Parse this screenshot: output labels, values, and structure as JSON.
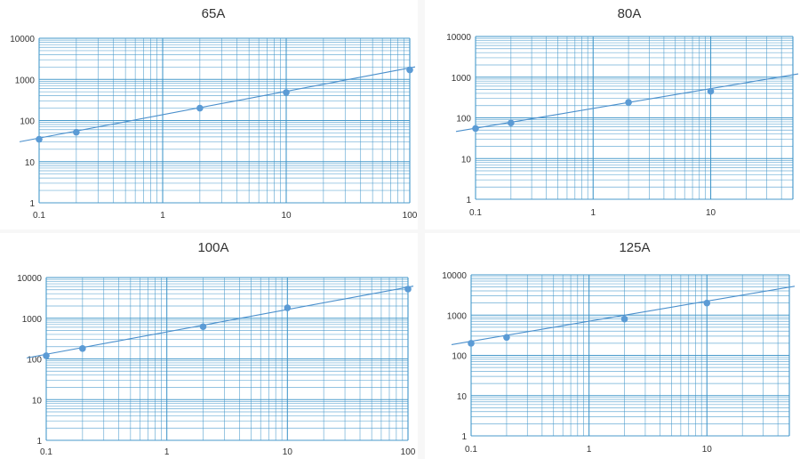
{
  "colors": {
    "grid": "#3f95c9",
    "trend": "#4a8fcc",
    "marker": "#5b9bd5"
  },
  "chart_data": [
    {
      "type": "scatter",
      "title": "65A",
      "x_scale": "log",
      "y_scale": "log",
      "xlim": [
        0.1,
        100
      ],
      "ylim": [
        1,
        10000
      ],
      "x_ticks": [
        {
          "value": 0.1,
          "label": "0.1"
        },
        {
          "value": 1,
          "label": "1"
        },
        {
          "value": 10,
          "label": "10"
        },
        {
          "value": 100,
          "label": "100"
        }
      ],
      "y_ticks": [
        {
          "value": 1,
          "label": "1"
        },
        {
          "value": 10,
          "label": "10"
        },
        {
          "value": 100,
          "label": "100"
        },
        {
          "value": 1000,
          "label": "1000"
        },
        {
          "value": 10000,
          "label": "10000"
        }
      ],
      "points": [
        {
          "x": 0.1,
          "y": 35
        },
        {
          "x": 0.2,
          "y": 52
        },
        {
          "x": 2,
          "y": 200
        },
        {
          "x": 10,
          "y": 480
        },
        {
          "x": 100,
          "y": 1700
        }
      ],
      "trendline": {
        "type": "power",
        "from": [
          0.08,
          33
        ],
        "to": [
          100,
          1900
        ]
      },
      "grid": true,
      "legend": "none"
    },
    {
      "type": "scatter",
      "title": "80A",
      "x_scale": "log",
      "y_scale": "log",
      "xlim": [
        0.1,
        100
      ],
      "ylim": [
        1,
        10000
      ],
      "x_ticks": [
        {
          "value": 0.1,
          "label": "0.1"
        },
        {
          "value": 1,
          "label": "1"
        },
        {
          "value": 10,
          "label": "10"
        }
      ],
      "y_ticks": [
        {
          "value": 1,
          "label": "1"
        },
        {
          "value": 10,
          "label": "10"
        },
        {
          "value": 100,
          "label": "100"
        },
        {
          "value": 1000,
          "label": "1000"
        },
        {
          "value": 10000,
          "label": "10000"
        }
      ],
      "points": [
        {
          "x": 0.1,
          "y": 55
        },
        {
          "x": 0.2,
          "y": 75
        },
        {
          "x": 2,
          "y": 240
        },
        {
          "x": 10,
          "y": 450
        }
      ],
      "trendline": {
        "type": "power",
        "from": [
          0.08,
          50
        ],
        "to": [
          100,
          1600
        ]
      },
      "grid": true,
      "legend": "none"
    },
    {
      "type": "scatter",
      "title": "100A",
      "x_scale": "log",
      "y_scale": "log",
      "xlim": [
        0.1,
        100
      ],
      "ylim": [
        1,
        10000
      ],
      "x_ticks": [
        {
          "value": 0.1,
          "label": "0.1"
        },
        {
          "value": 1,
          "label": "1"
        },
        {
          "value": 10,
          "label": "10"
        },
        {
          "value": 100,
          "label": "100"
        }
      ],
      "y_ticks": [
        {
          "value": 1,
          "label": "1"
        },
        {
          "value": 10,
          "label": "10"
        },
        {
          "value": 100,
          "label": "100"
        },
        {
          "value": 1000,
          "label": "1000"
        },
        {
          "value": 10000,
          "label": "10000"
        }
      ],
      "points": [
        {
          "x": 0.1,
          "y": 120
        },
        {
          "x": 0.2,
          "y": 180
        },
        {
          "x": 2,
          "y": 620
        },
        {
          "x": 10,
          "y": 1800
        },
        {
          "x": 100,
          "y": 5200
        }
      ],
      "trendline": {
        "type": "power",
        "from": [
          0.08,
          115
        ],
        "to": [
          100,
          5800
        ]
      },
      "grid": true,
      "legend": "none"
    },
    {
      "type": "scatter",
      "title": "125A",
      "x_scale": "log",
      "y_scale": "log",
      "xlim": [
        0.1,
        100
      ],
      "ylim": [
        1,
        10000
      ],
      "x_ticks": [
        {
          "value": 0.1,
          "label": "0.1"
        },
        {
          "value": 1,
          "label": "1"
        },
        {
          "value": 10,
          "label": "10"
        }
      ],
      "y_ticks": [
        {
          "value": 1,
          "label": "1"
        },
        {
          "value": 10,
          "label": "10"
        },
        {
          "value": 100,
          "label": "100"
        },
        {
          "value": 1000,
          "label": "1000"
        },
        {
          "value": 10000,
          "label": "10000"
        }
      ],
      "points": [
        {
          "x": 0.1,
          "y": 200
        },
        {
          "x": 0.2,
          "y": 280
        },
        {
          "x": 2,
          "y": 800
        },
        {
          "x": 10,
          "y": 2000
        }
      ],
      "trendline": {
        "type": "power",
        "from": [
          0.08,
          200
        ],
        "to": [
          100,
          7000
        ]
      },
      "grid": true,
      "legend": "none"
    }
  ]
}
